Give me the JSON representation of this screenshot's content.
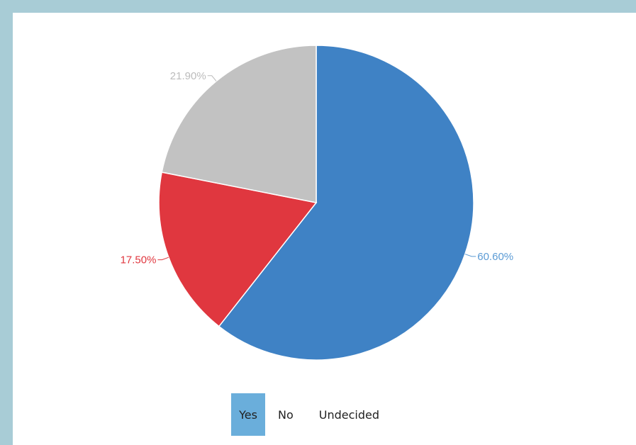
{
  "chart_data": {
    "type": "pie",
    "slices": [
      {
        "label": "Yes",
        "value": 60.6,
        "display": "60.60%",
        "color": "#3f82c5"
      },
      {
        "label": "No",
        "value": 17.5,
        "display": "17.50%",
        "color": "#e0373f"
      },
      {
        "label": "Undecided",
        "value": 21.9,
        "display": "21.90%",
        "color": "#c2c2c2"
      }
    ],
    "label_colors": {
      "Yes": "#5b9bd5",
      "No": "#e0373f",
      "Undecided": "#bcbcbc"
    },
    "start_angle_deg": 0,
    "direction": "clockwise",
    "legend_placement": "bottom-center",
    "legend_highlight_color": "#6aaedb"
  },
  "legend": {
    "items": [
      "Yes",
      "No",
      "Undecided"
    ]
  }
}
